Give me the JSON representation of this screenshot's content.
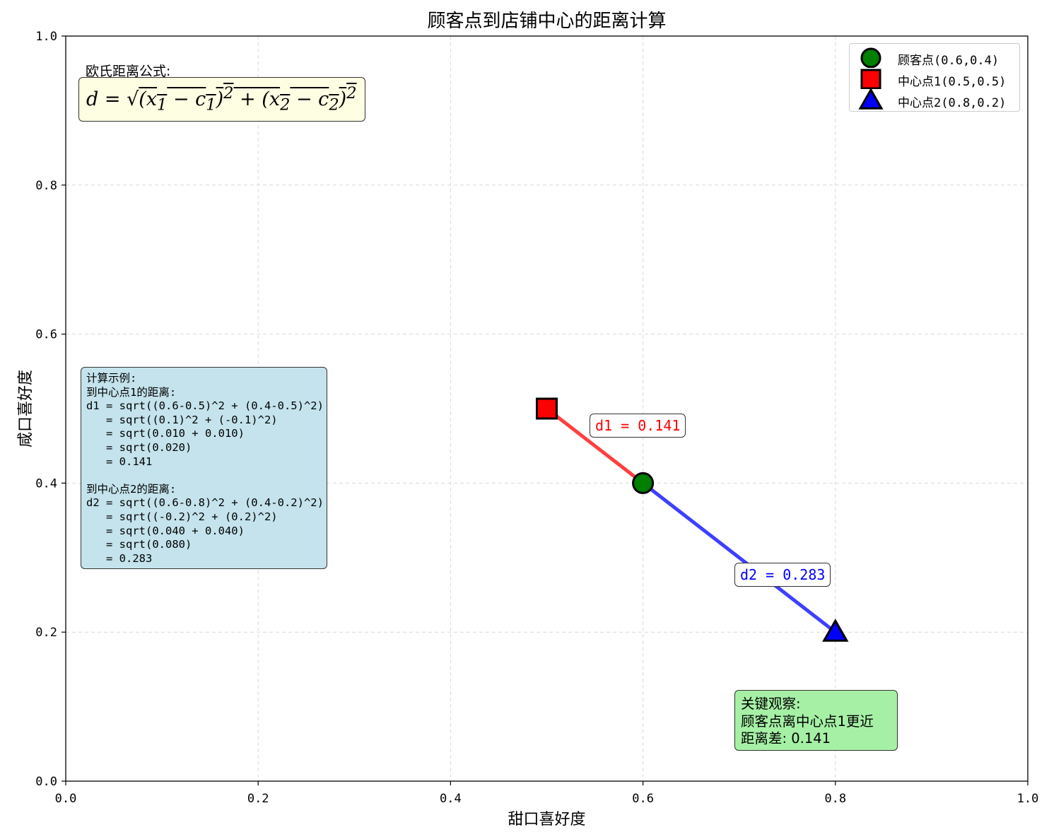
{
  "chart_data": {
    "type": "scatter",
    "title": "顾客点到店铺中心的距离计算",
    "xlabel": "甜口喜好度",
    "ylabel": "咸口喜好度",
    "xlim": [
      0.0,
      1.0
    ],
    "ylim": [
      0.0,
      1.0
    ],
    "xticks": [
      "0.0",
      "0.2",
      "0.4",
      "0.6",
      "0.8",
      "1.0"
    ],
    "yticks": [
      "0.0",
      "0.2",
      "0.4",
      "0.6",
      "0.8",
      "1.0"
    ],
    "grid": true,
    "legend_position": "top-right",
    "points": [
      {
        "name": "顾客点(0.6,0.4)",
        "x": 0.6,
        "y": 0.4,
        "marker": "circle",
        "color": "#007f00"
      },
      {
        "name": "中心点1(0.5,0.5)",
        "x": 0.5,
        "y": 0.5,
        "marker": "square",
        "color": "#ff0000"
      },
      {
        "name": "中心点2(0.8,0.2)",
        "x": 0.8,
        "y": 0.2,
        "marker": "triangle",
        "color": "#0000ff"
      }
    ],
    "segments": [
      {
        "from": [
          0.6,
          0.4
        ],
        "to": [
          0.5,
          0.5
        ],
        "color": "#ff2a2a",
        "label": "d1 = 0.141"
      },
      {
        "from": [
          0.6,
          0.4
        ],
        "to": [
          0.8,
          0.2
        ],
        "color": "#2a2aff",
        "label": "d2 = 0.283"
      }
    ]
  },
  "annotations": {
    "formula_title": "欧氏距离公式:",
    "formula_lines": [
      "计算示例:",
      "到中心点1的距离:",
      "d1 = sqrt((0.6-0.5)^2 + (0.4-0.5)^2)",
      "   = sqrt((0.1)^2 + (-0.1)^2)",
      "   = sqrt(0.010 + 0.010)",
      "   = sqrt(0.020)",
      "   = 0.141",
      "",
      "到中心点2的距离:",
      "d2 = sqrt((0.6-0.8)^2 + (0.4-0.2)^2)",
      "   = sqrt((-0.2)^2 + (0.2)^2)",
      "   = sqrt(0.040 + 0.040)",
      "   = sqrt(0.080)",
      "   = 0.283"
    ],
    "observation_lines": [
      "关键观察:",
      "顾客点离中心点1更近",
      "距离差: 0.141"
    ],
    "d1_label": "d1 = 0.141",
    "d2_label": "d2 = 0.283"
  },
  "colors": {
    "d1": "#ff0000",
    "d2": "#0000ff"
  }
}
